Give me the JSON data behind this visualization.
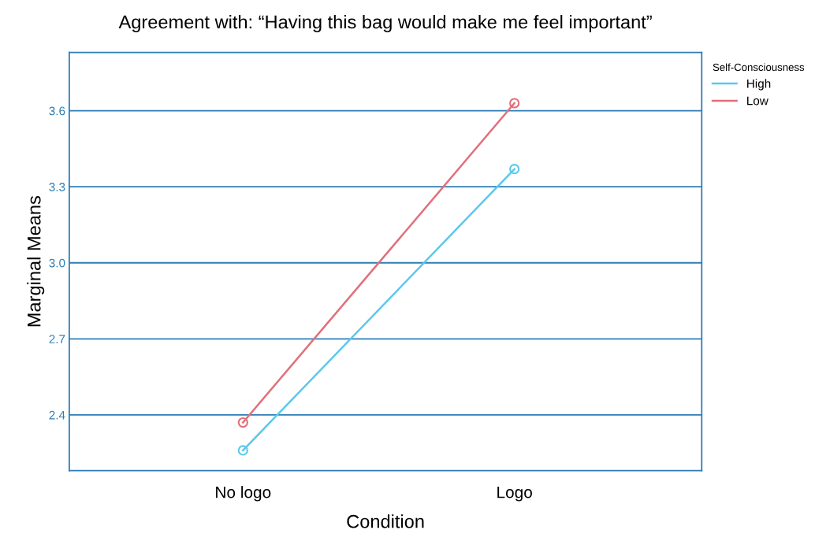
{
  "chart_data": {
    "type": "line",
    "title": "Agreement with: “Having this bag would make me feel important”",
    "xlabel": "Condition",
    "ylabel": "Marginal Means",
    "legend_title": "Self-Consciousness",
    "categories": [
      "No logo",
      "Logo"
    ],
    "series": [
      {
        "name": "High",
        "color": "#5bc8ec",
        "values": [
          2.26,
          3.37
        ]
      },
      {
        "name": "Low",
        "color": "#e0707a",
        "values": [
          2.37,
          3.63
        ]
      }
    ],
    "ylim": [
      2.18,
      3.83
    ],
    "yticks": [
      2.4,
      2.7,
      {
        "value": 3,
        "label": "3.0"
      },
      3.3,
      3.6
    ],
    "grid": "y",
    "legend": "top right",
    "marker": "circle",
    "line_style": "solid"
  }
}
